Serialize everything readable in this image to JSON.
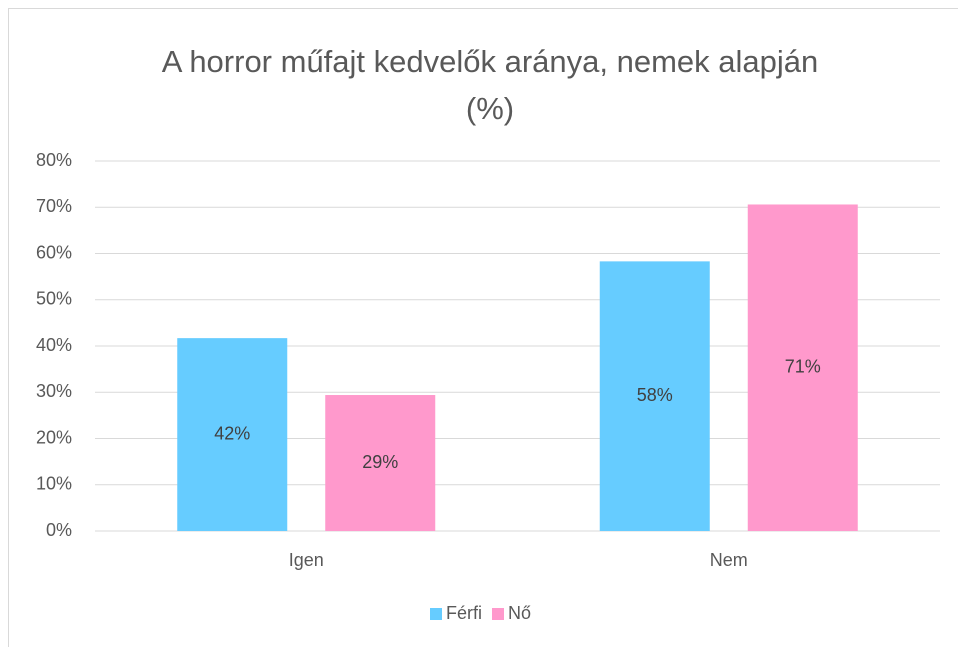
{
  "chart_data": {
    "type": "bar",
    "title": "A horror műfajt kedvelők aránya, nemek alapján (%)",
    "categories": [
      "Igen",
      "Nem"
    ],
    "series": [
      {
        "name": "Férfi",
        "color": "#66ccff",
        "values": [
          41.7,
          58.3
        ],
        "value_labels": [
          "42%",
          "58%"
        ]
      },
      {
        "name": "Nő",
        "color": "#ff99cc",
        "values": [
          29.4,
          70.6
        ],
        "value_labels": [
          "29%",
          "71%"
        ]
      }
    ],
    "ylim": [
      0,
      80
    ],
    "yticks": [
      {
        "value": 0,
        "label": "0%"
      },
      {
        "value": 10,
        "label": "10%"
      },
      {
        "value": 20,
        "label": "20%"
      },
      {
        "value": 30,
        "label": "30%"
      },
      {
        "value": 40,
        "label": "40%"
      },
      {
        "value": 50,
        "label": "50%"
      },
      {
        "value": 60,
        "label": "60%"
      },
      {
        "value": 70,
        "label": "70%"
      },
      {
        "value": 80,
        "label": "80%"
      }
    ],
    "grid": true,
    "legend": "bottom"
  }
}
